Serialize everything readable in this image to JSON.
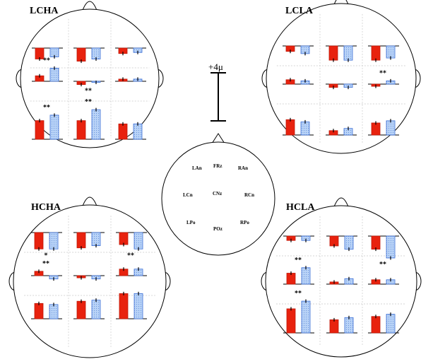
{
  "scale_label": "+4μ",
  "colors": {
    "left_bar": "#e8220e",
    "right_bar": "#a9c8f5",
    "right_bar_stroke": "#3b6fd6"
  },
  "center_map": {
    "labels": [
      "LAn",
      "FRz",
      "RAn",
      "LCn",
      "CNz",
      "RCn",
      "LPo",
      "POz",
      "RPo"
    ]
  },
  "panels": [
    {
      "title": "LCHA",
      "cells": [
        {
          "a": -10,
          "b": -8,
          "sig": "",
          "sig_pos": ""
        },
        {
          "a": -12,
          "b": -10,
          "sig": "",
          "sig_pos": ""
        },
        {
          "a": -5,
          "b": -4,
          "sig": "",
          "sig_pos": ""
        },
        {
          "a": 5,
          "b": 12,
          "sig": "**",
          "sig_pos": "above"
        },
        {
          "a": -3,
          "b": -1,
          "sig": "**",
          "sig_pos": "below"
        },
        {
          "a": 2,
          "b": 2,
          "sig": "",
          "sig_pos": ""
        },
        {
          "a": 17,
          "b": 22,
          "sig": "**",
          "sig_pos": "above"
        },
        {
          "a": 17,
          "b": 27,
          "sig": "**",
          "sig_pos": "above"
        },
        {
          "a": 14,
          "b": 14,
          "sig": "",
          "sig_pos": ""
        }
      ]
    },
    {
      "title": "LCLA",
      "cells": [
        {
          "a": -5,
          "b": -7,
          "sig": "",
          "sig_pos": ""
        },
        {
          "a": -13,
          "b": -13,
          "sig": "",
          "sig_pos": ""
        },
        {
          "a": -13,
          "b": -11,
          "sig": "",
          "sig_pos": ""
        },
        {
          "a": 4,
          "b": 3,
          "sig": "",
          "sig_pos": ""
        },
        {
          "a": -3,
          "b": -3,
          "sig": "",
          "sig_pos": ""
        },
        {
          "a": -2,
          "b": 3,
          "sig": "**",
          "sig_pos": "above"
        },
        {
          "a": 14,
          "b": 12,
          "sig": "",
          "sig_pos": ""
        },
        {
          "a": 4,
          "b": 6,
          "sig": "",
          "sig_pos": ""
        },
        {
          "a": 11,
          "b": 13,
          "sig": "",
          "sig_pos": ""
        }
      ]
    },
    {
      "title": "HCHA",
      "cells": [
        {
          "a": -15,
          "b": -15,
          "sig": "*",
          "sig_pos": "below"
        },
        {
          "a": -14,
          "b": -12,
          "sig": "",
          "sig_pos": ""
        },
        {
          "a": -11,
          "b": -15,
          "sig": "**",
          "sig_pos": "below"
        },
        {
          "a": 4,
          "b": -3,
          "sig": "**",
          "sig_pos": "above"
        },
        {
          "a": -2,
          "b": -3,
          "sig": "",
          "sig_pos": ""
        },
        {
          "a": 6,
          "b": 6,
          "sig": "",
          "sig_pos": ""
        },
        {
          "a": 14,
          "b": 13,
          "sig": "",
          "sig_pos": ""
        },
        {
          "a": 16,
          "b": 17,
          "sig": "",
          "sig_pos": ""
        },
        {
          "a": 23,
          "b": 23,
          "sig": "",
          "sig_pos": ""
        }
      ]
    },
    {
      "title": "HCLA",
      "cells": [
        {
          "a": -4,
          "b": -4,
          "sig": "",
          "sig_pos": ""
        },
        {
          "a": -9,
          "b": -12,
          "sig": "",
          "sig_pos": ""
        },
        {
          "a": -12,
          "b": -20,
          "sig": "**",
          "sig_pos": "below"
        },
        {
          "a": 10,
          "b": 15,
          "sig": "**",
          "sig_pos": "above"
        },
        {
          "a": 2,
          "b": 5,
          "sig": "",
          "sig_pos": ""
        },
        {
          "a": 4,
          "b": 4,
          "sig": "",
          "sig_pos": ""
        },
        {
          "a": 22,
          "b": 29,
          "sig": "**",
          "sig_pos": "above"
        },
        {
          "a": 12,
          "b": 14,
          "sig": "",
          "sig_pos": ""
        },
        {
          "a": 15,
          "b": 17,
          "sig": "",
          "sig_pos": ""
        }
      ]
    }
  ]
}
